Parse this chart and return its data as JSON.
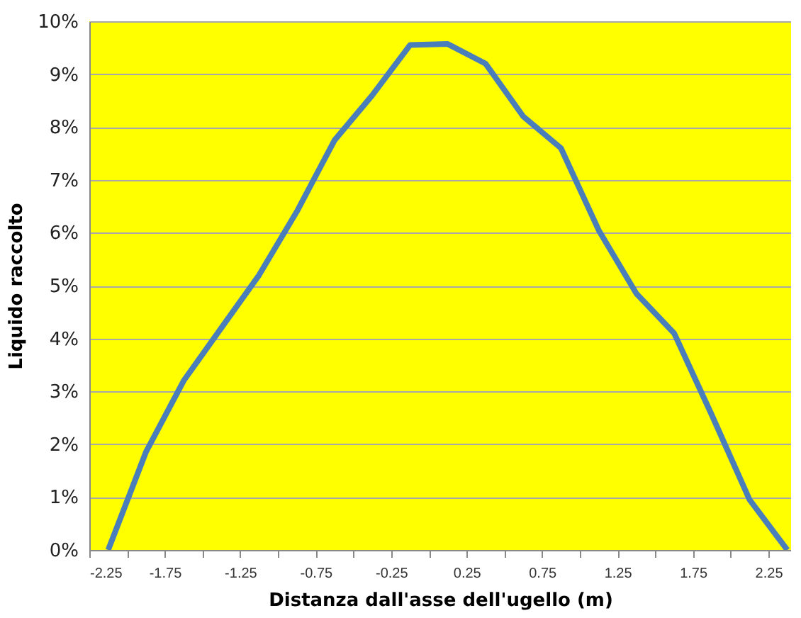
{
  "chart_data": {
    "type": "line",
    "xlabel": "Distanza dall'asse dell'ugello (m)",
    "ylabel": "Liquido raccolto",
    "x": [
      -2.125,
      -1.875,
      -1.625,
      -1.375,
      -1.125,
      -0.875,
      -0.625,
      -0.375,
      -0.125,
      0.125,
      0.375,
      0.625,
      0.875,
      1.125,
      1.375,
      1.625,
      1.875,
      2.125,
      2.375
    ],
    "series": [
      {
        "color": "#4a7ebb",
        "values": [
          0,
          1.85,
          3.2,
          4.2,
          5.2,
          6.4,
          7.75,
          8.6,
          9.55,
          9.57,
          9.2,
          8.2,
          7.6,
          6.05,
          4.85,
          4.1,
          2.55,
          0.95,
          0
        ]
      }
    ],
    "xlim": [
      -2.25,
      2.4
    ],
    "xticks": [
      -2.25,
      {
        "value": -2,
        "label": null
      },
      -1.75,
      {
        "value": -1.5,
        "label": null
      },
      -1.25,
      {
        "value": -1,
        "label": null
      },
      -0.75,
      {
        "value": -0.5,
        "label": null
      },
      -0.25,
      {
        "value": 0,
        "label": null
      },
      0.25,
      {
        "value": 0.5,
        "label": null
      },
      0.75,
      {
        "value": 1,
        "label": null
      },
      1.25,
      {
        "value": 1.5,
        "label": null
      },
      1.75,
      {
        "value": 2,
        "label": null
      },
      2.25
    ],
    "ylim": [
      0,
      10
    ],
    "yticks": [
      {
        "value": 0,
        "label": "0%"
      },
      {
        "value": 1,
        "label": "1%"
      },
      {
        "value": 2,
        "label": "2%"
      },
      {
        "value": 3,
        "label": "3%"
      },
      {
        "value": 4,
        "label": "4%"
      },
      {
        "value": 5,
        "label": "5%"
      },
      {
        "value": 6,
        "label": "6%"
      },
      {
        "value": 7,
        "label": "7%"
      },
      {
        "value": 8,
        "label": "8%"
      },
      {
        "value": 9,
        "label": "9%"
      },
      {
        "value": 10,
        "label": "10%"
      }
    ],
    "grid": "y",
    "marker": "none",
    "line_style": "solid"
  }
}
